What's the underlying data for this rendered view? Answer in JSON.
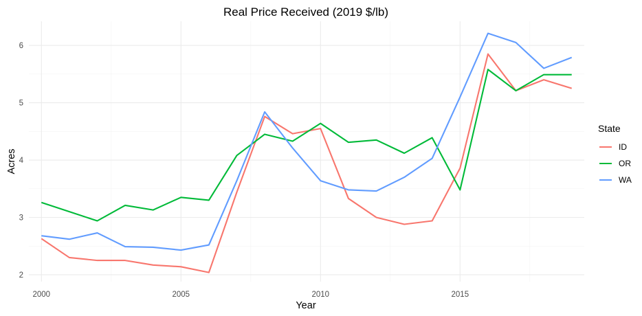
{
  "chart_data": {
    "type": "line",
    "title": "Real Price Received (2019 $/lb)",
    "xlabel": "Year",
    "ylabel": "Acres",
    "x": [
      2000,
      2001,
      2002,
      2003,
      2004,
      2005,
      2006,
      2007,
      2008,
      2009,
      2010,
      2011,
      2012,
      2013,
      2014,
      2015,
      2016,
      2017,
      2018,
      2019
    ],
    "xlim": [
      1999.55,
      2019.45
    ],
    "ylim": [
      1.88,
      6.42
    ],
    "x_ticks": [
      2000,
      2005,
      2010,
      2015
    ],
    "x_tick_labels": [
      "2000",
      "2005",
      "2010",
      "2015"
    ],
    "x_minor_ticks": [
      2002.5,
      2007.5,
      2012.5,
      2017.5
    ],
    "y_ticks": [
      2,
      3,
      4,
      5,
      6
    ],
    "y_tick_labels": [
      "2",
      "3",
      "4",
      "5",
      "6"
    ],
    "y_minor_ticks": [
      2.5,
      3.5,
      4.5,
      5.5
    ],
    "grid": true,
    "legend": {
      "title": "State",
      "position": "right"
    },
    "series": [
      {
        "name": "ID",
        "color": "#F8766D",
        "values": [
          2.63,
          2.3,
          2.25,
          2.25,
          2.17,
          2.14,
          2.04,
          3.44,
          4.76,
          4.46,
          4.55,
          3.33,
          3.0,
          2.88,
          2.94,
          3.86,
          5.85,
          5.21,
          5.4,
          5.25
        ]
      },
      {
        "name": "OR",
        "color": "#00BA38",
        "values": [
          3.26,
          3.1,
          2.94,
          3.21,
          3.13,
          3.35,
          3.3,
          4.08,
          4.45,
          4.33,
          4.64,
          4.31,
          4.35,
          4.12,
          4.39,
          3.48,
          5.58,
          5.21,
          5.49,
          5.49
        ]
      },
      {
        "name": "WA",
        "color": "#619CFF",
        "values": [
          2.68,
          2.62,
          2.73,
          2.49,
          2.48,
          2.43,
          2.52,
          3.64,
          4.84,
          4.21,
          3.64,
          3.48,
          3.46,
          3.7,
          4.03,
          5.1,
          6.21,
          6.05,
          5.6,
          5.79
        ]
      }
    ]
  }
}
